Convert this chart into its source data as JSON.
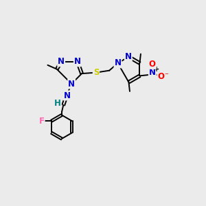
{
  "bg_color": "#ebebeb",
  "N_color": "#0000cc",
  "O_color": "#ff0000",
  "S_color": "#cccc00",
  "F_color": "#ff69b4",
  "C_color": "#000000",
  "H_color": "#008080",
  "bond_color": "#000000",
  "bond_lw": 1.4,
  "font_size_atom": 8.5,
  "font_size_small": 7.0,
  "xlim": [
    0,
    10
  ],
  "ylim": [
    0,
    10
  ]
}
